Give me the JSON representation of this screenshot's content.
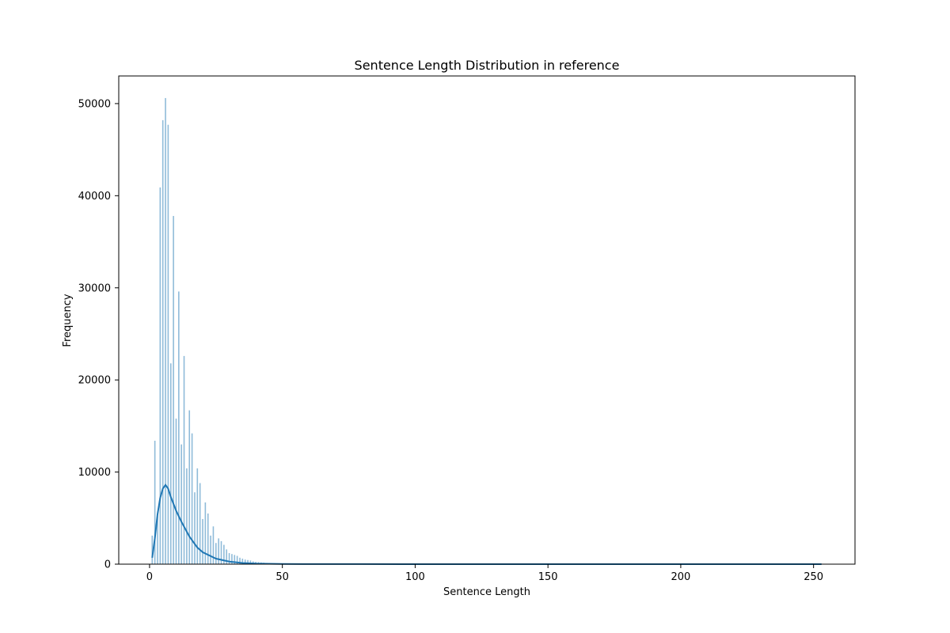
{
  "chart_data": {
    "type": "bar",
    "title": "Sentence Length Distribution in reference",
    "xlabel": "Sentence Length",
    "ylabel": "Frequency",
    "xlim": [
      -11.6,
      265.6
    ],
    "ylim": [
      0,
      53000
    ],
    "xticks": [
      0,
      50,
      100,
      150,
      200,
      250
    ],
    "yticks": [
      0,
      10000,
      20000,
      30000,
      40000,
      50000
    ],
    "grid": false,
    "legend": "none",
    "bar_color": "#1f77b4",
    "kde_color": "#1f77b4",
    "series": [
      {
        "kind": "histogram",
        "x": [
          1,
          2,
          3,
          4,
          5,
          6,
          7,
          8,
          9,
          10,
          11,
          12,
          13,
          14,
          15,
          16,
          17,
          18,
          19,
          20,
          21,
          22,
          23,
          24,
          25,
          26,
          27,
          28,
          29,
          30,
          31,
          32,
          33,
          34,
          35,
          36,
          37,
          38,
          39,
          40,
          41,
          42,
          43,
          44,
          45,
          46,
          47,
          48,
          49,
          50,
          55,
          60,
          70,
          80,
          90,
          100,
          120,
          150,
          200,
          253
        ],
        "values": [
          3100,
          13400,
          5200,
          40900,
          48200,
          50600,
          47700,
          21800,
          37800,
          15800,
          29600,
          13000,
          22600,
          10400,
          16700,
          14200,
          7800,
          10400,
          8800,
          4900,
          6700,
          5500,
          3100,
          4100,
          2300,
          2800,
          2500,
          2100,
          1600,
          1200,
          1100,
          1000,
          900,
          700,
          600,
          500,
          450,
          400,
          300,
          250,
          220,
          190,
          160,
          130,
          110,
          90,
          80,
          70,
          60,
          50,
          40,
          30,
          20,
          15,
          10,
          8,
          6,
          4,
          3,
          2
        ]
      },
      {
        "kind": "kde",
        "x": [
          1,
          2,
          3,
          4,
          5,
          6,
          7,
          8,
          10,
          12,
          15,
          18,
          20,
          25,
          30,
          35,
          40,
          50,
          60,
          80,
          100,
          150,
          200,
          253
        ],
        "values": [
          700,
          2800,
          5400,
          7200,
          8200,
          8600,
          8200,
          7300,
          5800,
          4600,
          3000,
          1800,
          1300,
          600,
          280,
          130,
          70,
          25,
          12,
          6,
          4,
          2,
          1,
          0
        ]
      }
    ]
  }
}
